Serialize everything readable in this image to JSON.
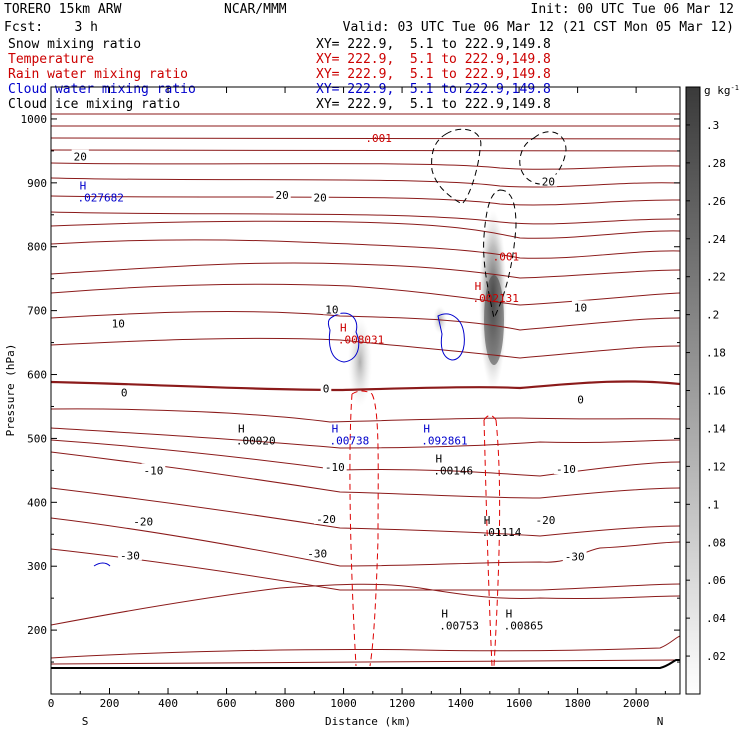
{
  "header": {
    "model": "TORERO  15km ARW",
    "center": "NCAR/MMM",
    "init": "Init: 00 UTC Tue 06 Mar 12",
    "fcst": "Fcst:    3 h",
    "valid": "Valid: 03 UTC Tue 06 Mar 12 (21 CST Mon 05 Mar 12)"
  },
  "legend": [
    {
      "name": "Snow mixing ratio",
      "color": "#000000"
    },
    {
      "name": "Temperature",
      "color": "#cc0000"
    },
    {
      "name": "Rain water mixing ratio",
      "color": "#cc0000"
    },
    {
      "name": "Cloud water mixing ratio",
      "color": "#0000cc"
    },
    {
      "name": "Cloud ice mixing ratio",
      "color": "#000000"
    }
  ],
  "xy_label": "XY= 222.9,  5.1 to 222.9,149.8",
  "colorbar": {
    "unit": "g kg",
    "unit_exp": "-1",
    "ticks": [
      ".02",
      ".04",
      ".06",
      ".08",
      ".1",
      ".12",
      ".14",
      ".16",
      ".18",
      ".2",
      ".22",
      ".24",
      ".26",
      ".28",
      ".3"
    ]
  },
  "chart_data": {
    "type": "cross-section",
    "xlabel": "Distance (km)",
    "ylabel": "Pressure (hPa)",
    "xlim": [
      0,
      2150
    ],
    "ylim": [
      1050,
      100
    ],
    "xticks": [
      "0",
      "200",
      "400",
      "600",
      "800",
      "1000",
      "1200",
      "1400",
      "1600",
      "1800",
      "2000"
    ],
    "yticks": [
      "200",
      "300",
      "400",
      "500",
      "600",
      "700",
      "800",
      "900",
      "1000"
    ],
    "x_end_labels": {
      "left": "S",
      "right": "N"
    },
    "temperature_labels": [
      {
        "text": "-30",
        "x": 270,
        "p": 317
      },
      {
        "text": "-30",
        "x": 910,
        "p": 320
      },
      {
        "text": "-30",
        "x": 1790,
        "p": 315
      },
      {
        "text": "-20",
        "x": 315,
        "p": 370
      },
      {
        "text": "-20",
        "x": 940,
        "p": 374
      },
      {
        "text": "-20",
        "x": 1690,
        "p": 372
      },
      {
        "text": "-10",
        "x": 350,
        "p": 450
      },
      {
        "text": "-10",
        "x": 970,
        "p": 455
      },
      {
        "text": "-10",
        "x": 1760,
        "p": 452
      },
      {
        "text": "0",
        "x": 250,
        "p": 572
      },
      {
        "text": "0",
        "x": 940,
        "p": 578
      },
      {
        "text": "0",
        "x": 1810,
        "p": 561
      },
      {
        "text": "10",
        "x": 230,
        "p": 680
      },
      {
        "text": "10",
        "x": 960,
        "p": 702
      },
      {
        "text": "10",
        "x": 1810,
        "p": 705
      },
      {
        "text": "20",
        "x": 100,
        "p": 941
      },
      {
        "text": "20",
        "x": 790,
        "p": 881
      },
      {
        "text": "20",
        "x": 920,
        "p": 877
      },
      {
        "text": "20",
        "x": 1700,
        "p": 902
      }
    ],
    "maxima_labels": [
      {
        "text": ".00753",
        "x": 1395,
        "p": 210,
        "color": "#000000"
      },
      {
        "text": ".00865",
        "x": 1615,
        "p": 210,
        "color": "#000000"
      },
      {
        "text": ".01114",
        "x": 1540,
        "p": 357,
        "color": "#000000"
      },
      {
        "text": ".00146",
        "x": 1375,
        "p": 453,
        "color": "#000000"
      },
      {
        "text": ".00020",
        "x": 700,
        "p": 500,
        "color": "#000000"
      },
      {
        "text": ".00738",
        "x": 1020,
        "p": 500,
        "color": "#0000cc"
      },
      {
        "text": ".092861",
        "x": 1345,
        "p": 500,
        "color": "#0000cc"
      },
      {
        "text": ".027682",
        "x": 170,
        "p": 880,
        "color": "#0000cc"
      },
      {
        "text": ".008031",
        "x": 1060,
        "p": 658,
        "color": "#cc0000"
      },
      {
        "text": ".002131",
        "x": 1520,
        "p": 723,
        "color": "#cc0000"
      },
      {
        "text": ".001",
        "x": 1555,
        "p": 788,
        "color": "#cc0000"
      },
      {
        "text": ".001",
        "x": 1120,
        "p": 973,
        "color": "#cc0000"
      }
    ]
  }
}
